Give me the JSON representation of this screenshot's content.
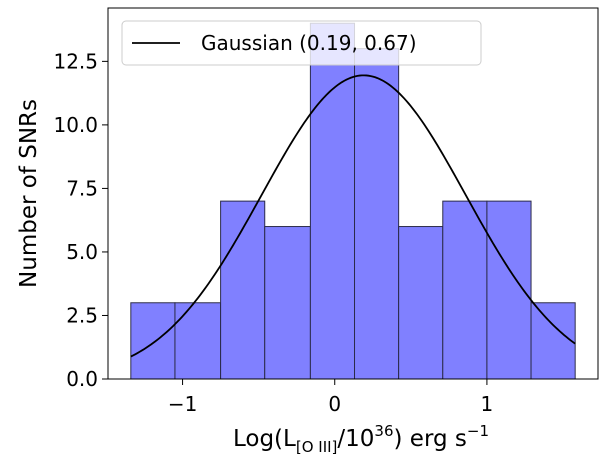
{
  "chart_data": {
    "type": "bar",
    "bins": [
      {
        "left": -1.34,
        "right": -1.05,
        "count": 3
      },
      {
        "left": -1.05,
        "right": -0.75,
        "count": 3
      },
      {
        "left": -0.75,
        "right": -0.46,
        "count": 7
      },
      {
        "left": -0.46,
        "right": -0.16,
        "count": 6
      },
      {
        "left": -0.16,
        "right": 0.13,
        "count": 14
      },
      {
        "left": 0.13,
        "right": 0.42,
        "count": 13
      },
      {
        "left": 0.42,
        "right": 0.71,
        "count": 6
      },
      {
        "left": 0.71,
        "right": 1.0,
        "count": 7
      },
      {
        "left": 1.0,
        "right": 1.29,
        "count": 7
      },
      {
        "left": 1.29,
        "right": 1.58,
        "count": 3
      }
    ],
    "curve": {
      "name": "Gaussian (0.19, 0.67)",
      "mean": 0.19,
      "sigma": 0.67,
      "peak": 11.95
    },
    "xlim": [
      -1.49,
      1.73
    ],
    "ylim": [
      0,
      14.6
    ],
    "xticks": [
      -1,
      0,
      1
    ],
    "xtick_labels": [
      "−1",
      "0",
      "1"
    ],
    "yticks": [
      0,
      2.5,
      5,
      7.5,
      10,
      12.5
    ],
    "ytick_labels": [
      "0.0",
      "2.5",
      "5.0",
      "7.5",
      "10.0",
      "12.5"
    ],
    "xlabel": {
      "prefix": "Log(L",
      "sub": "[O III]",
      "mid": "/10",
      "sup": "36",
      "suffix": ") erg s",
      "sup2": "−1"
    },
    "ylabel": "Number of SNRs",
    "legend": "top-left",
    "bar_color": "#8080ff",
    "curve_color": "#000000"
  }
}
